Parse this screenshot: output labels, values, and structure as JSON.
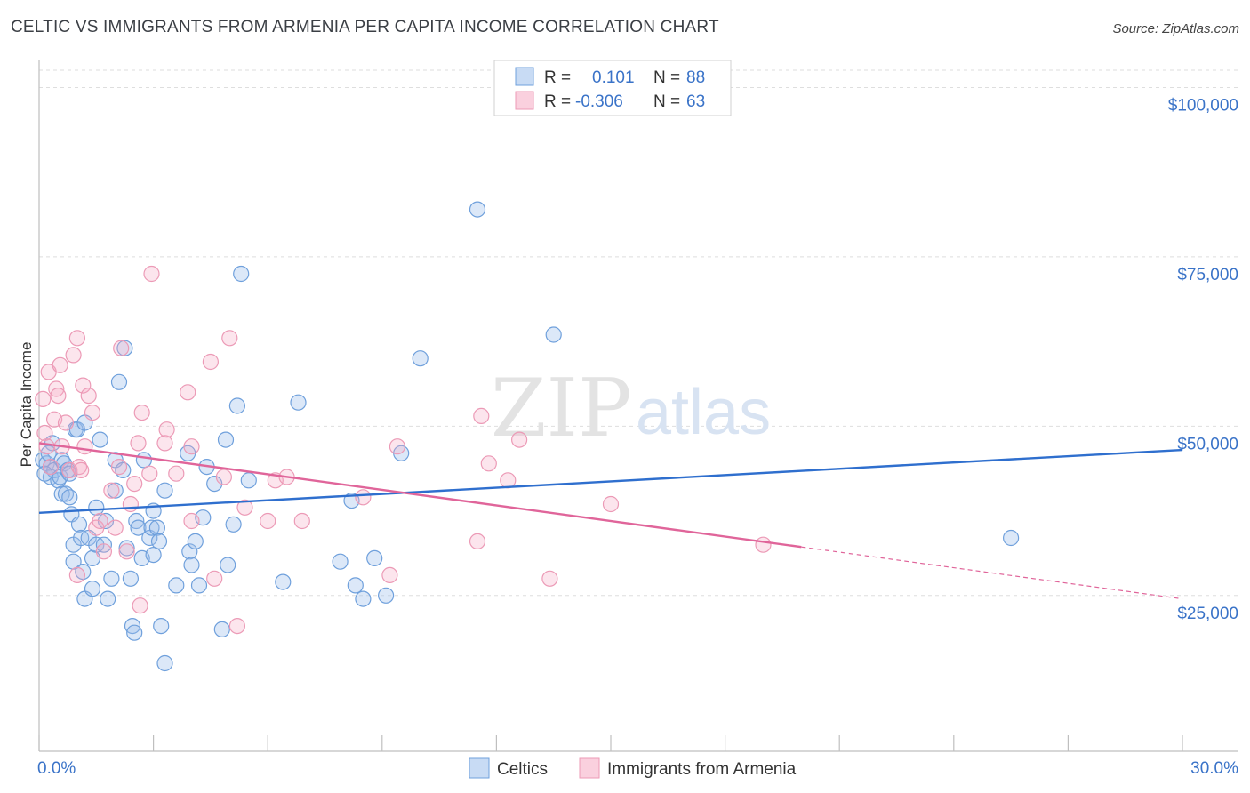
{
  "title": "CELTIC VS IMMIGRANTS FROM ARMENIA PER CAPITA INCOME CORRELATION CHART",
  "source": "Source: ZipAtlas.com",
  "colors": {
    "blue": "#2f6fce",
    "pink": "#e0659a",
    "axis_text": "#3a73c8"
  },
  "legend": {
    "rows": [
      {
        "r_label": "R =",
        "r_value": "0.101",
        "n_label": "N =",
        "n_value": "88"
      },
      {
        "r_label": "R =",
        "r_value": "-0.306",
        "n_label": "N =",
        "n_value": "63"
      }
    ]
  },
  "watermark": {
    "part1": "ZIP",
    "part2": "atlas"
  },
  "chart_data": {
    "type": "scatter",
    "xlabel": "",
    "ylabel": "Per Capita Income",
    "xlim": [
      0,
      30
    ],
    "ylim": [
      2000,
      104000
    ],
    "x_tick_labels": [
      "0.0%",
      "30.0%"
    ],
    "y_ticks": [
      {
        "value": 25000,
        "label": "$25,000"
      },
      {
        "value": 50000,
        "label": "$50,000"
      },
      {
        "value": 75000,
        "label": "$75,000"
      },
      {
        "value": 100000,
        "label": "$100,000"
      }
    ],
    "series": [
      {
        "name": "Celtics",
        "color": "#2f6fce",
        "trend": {
          "x": [
            0,
            30
          ],
          "y": [
            37200,
            46500
          ],
          "dashed_from": null
        },
        "points": [
          [
            0.1,
            45000
          ],
          [
            0.2,
            44500
          ],
          [
            0.3,
            44000
          ],
          [
            0.3,
            42500
          ],
          [
            0.35,
            47500
          ],
          [
            0.4,
            43500
          ],
          [
            0.5,
            42000
          ],
          [
            0.55,
            42500
          ],
          [
            0.6,
            40000
          ],
          [
            0.6,
            45000
          ],
          [
            0.65,
            44500
          ],
          [
            0.7,
            40000
          ],
          [
            0.75,
            43500
          ],
          [
            0.8,
            43000
          ],
          [
            0.8,
            39500
          ],
          [
            0.85,
            37000
          ],
          [
            0.9,
            32500
          ],
          [
            0.9,
            30000
          ],
          [
            0.95,
            49500
          ],
          [
            1.0,
            49500
          ],
          [
            1.05,
            35500
          ],
          [
            1.1,
            33500
          ],
          [
            1.15,
            28500
          ],
          [
            1.2,
            50500
          ],
          [
            1.2,
            24500
          ],
          [
            1.3,
            33500
          ],
          [
            1.4,
            30500
          ],
          [
            1.4,
            26000
          ],
          [
            1.5,
            32500
          ],
          [
            1.5,
            38000
          ],
          [
            1.6,
            48000
          ],
          [
            1.7,
            32500
          ],
          [
            1.75,
            36000
          ],
          [
            1.8,
            24500
          ],
          [
            1.9,
            27500
          ],
          [
            2.0,
            45000
          ],
          [
            2.0,
            40500
          ],
          [
            2.1,
            56500
          ],
          [
            2.2,
            43500
          ],
          [
            2.25,
            61500
          ],
          [
            2.3,
            32000
          ],
          [
            2.4,
            27500
          ],
          [
            2.45,
            20500
          ],
          [
            2.5,
            19500
          ],
          [
            2.55,
            36000
          ],
          [
            2.6,
            35000
          ],
          [
            2.7,
            30500
          ],
          [
            2.75,
            45000
          ],
          [
            2.9,
            33500
          ],
          [
            2.95,
            35000
          ],
          [
            3.0,
            31000
          ],
          [
            3.0,
            37500
          ],
          [
            3.1,
            35000
          ],
          [
            3.15,
            33000
          ],
          [
            3.2,
            20500
          ],
          [
            3.3,
            15000
          ],
          [
            3.3,
            40500
          ],
          [
            3.6,
            26500
          ],
          [
            3.9,
            46000
          ],
          [
            3.95,
            31500
          ],
          [
            4.0,
            29500
          ],
          [
            4.1,
            33000
          ],
          [
            4.2,
            26500
          ],
          [
            4.3,
            36500
          ],
          [
            4.4,
            44000
          ],
          [
            4.6,
            41500
          ],
          [
            4.8,
            20000
          ],
          [
            4.9,
            48000
          ],
          [
            4.95,
            29500
          ],
          [
            5.1,
            35500
          ],
          [
            5.2,
            53000
          ],
          [
            5.3,
            72500
          ],
          [
            5.5,
            42000
          ],
          [
            6.4,
            27000
          ],
          [
            6.8,
            53500
          ],
          [
            7.9,
            30000
          ],
          [
            8.2,
            39000
          ],
          [
            8.3,
            26500
          ],
          [
            8.5,
            24500
          ],
          [
            8.8,
            30500
          ],
          [
            9.1,
            25000
          ],
          [
            9.5,
            46000
          ],
          [
            10.0,
            60000
          ],
          [
            11.5,
            82000
          ],
          [
            13.5,
            63500
          ],
          [
            25.5,
            33500
          ],
          [
            0.25,
            46000
          ],
          [
            0.15,
            43000
          ]
        ]
      },
      {
        "name": "Immigrants from Armenia",
        "color": "#e0659a",
        "trend": {
          "x": [
            0,
            30
          ],
          "y": [
            47500,
            24500
          ],
          "dashed_from": 20.0
        },
        "points": [
          [
            0.1,
            54000
          ],
          [
            0.15,
            49000
          ],
          [
            0.2,
            47000
          ],
          [
            0.25,
            58000
          ],
          [
            0.3,
            44000
          ],
          [
            0.4,
            51000
          ],
          [
            0.45,
            55500
          ],
          [
            0.5,
            54500
          ],
          [
            0.55,
            59000
          ],
          [
            0.6,
            47000
          ],
          [
            0.7,
            50500
          ],
          [
            0.8,
            43500
          ],
          [
            0.9,
            60500
          ],
          [
            1.0,
            63000
          ],
          [
            1.0,
            28000
          ],
          [
            1.05,
            44000
          ],
          [
            1.1,
            43500
          ],
          [
            1.15,
            56000
          ],
          [
            1.2,
            47000
          ],
          [
            1.3,
            54500
          ],
          [
            1.4,
            52000
          ],
          [
            1.5,
            35000
          ],
          [
            1.6,
            36000
          ],
          [
            1.7,
            31500
          ],
          [
            1.9,
            40500
          ],
          [
            2.0,
            35000
          ],
          [
            2.1,
            44000
          ],
          [
            2.15,
            61500
          ],
          [
            2.3,
            31500
          ],
          [
            2.4,
            38500
          ],
          [
            2.5,
            41500
          ],
          [
            2.6,
            47500
          ],
          [
            2.65,
            23500
          ],
          [
            2.7,
            52000
          ],
          [
            2.9,
            43000
          ],
          [
            2.95,
            72500
          ],
          [
            3.3,
            47500
          ],
          [
            3.35,
            49500
          ],
          [
            3.6,
            43000
          ],
          [
            3.9,
            55000
          ],
          [
            4.0,
            36000
          ],
          [
            4.0,
            47000
          ],
          [
            4.5,
            59500
          ],
          [
            4.6,
            27500
          ],
          [
            4.85,
            42500
          ],
          [
            5.0,
            63000
          ],
          [
            5.2,
            20500
          ],
          [
            5.4,
            38000
          ],
          [
            6.0,
            36000
          ],
          [
            6.2,
            42000
          ],
          [
            6.5,
            42500
          ],
          [
            6.9,
            36000
          ],
          [
            8.5,
            39500
          ],
          [
            9.2,
            28000
          ],
          [
            9.4,
            47000
          ],
          [
            11.5,
            33000
          ],
          [
            11.6,
            51500
          ],
          [
            11.8,
            44500
          ],
          [
            12.3,
            42000
          ],
          [
            12.6,
            48000
          ],
          [
            13.4,
            27500
          ],
          [
            15.0,
            38500
          ],
          [
            19.0,
            32500
          ]
        ]
      }
    ],
    "bottom_legend": [
      "Celtics",
      "Immigrants from Armenia"
    ]
  }
}
